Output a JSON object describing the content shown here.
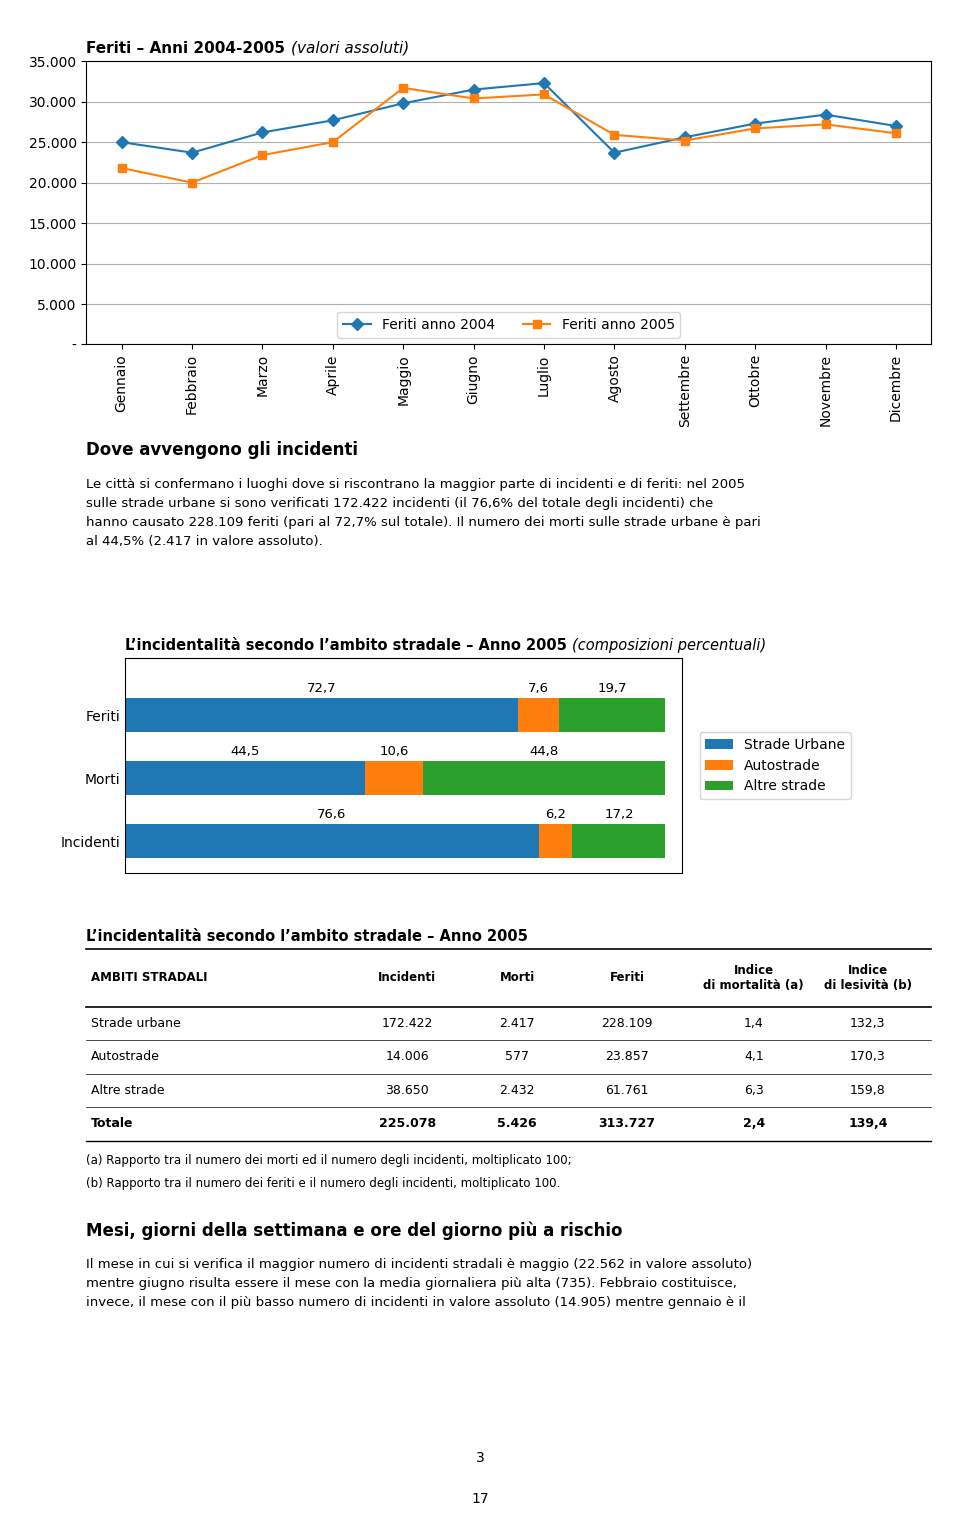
{
  "chart_data": [
    {
      "type": "line",
      "title": "Feriti – Anni 2004-2005",
      "subtitle": "(valori assoluti)",
      "categories": [
        "Gennaio",
        "Febbraio",
        "Marzo",
        "Aprile",
        "Maggio",
        "Giugno",
        "Luglio",
        "Agosto",
        "Settembre",
        "Ottobre",
        "Novembre",
        "Dicembre"
      ],
      "series": [
        {
          "name": "Feriti anno 2004",
          "marker": "diamond",
          "values": [
            25000,
            23700,
            26200,
            27700,
            29800,
            31500,
            32300,
            23700,
            25600,
            27300,
            28400,
            27000
          ]
        },
        {
          "name": "Feriti anno 2005",
          "marker": "square",
          "values": [
            21800,
            20000,
            23400,
            25000,
            31700,
            30400,
            30900,
            25900,
            25200,
            26700,
            27200,
            26100
          ]
        }
      ],
      "ylim": [
        0,
        35000
      ],
      "yticks": [
        {
          "value": 0,
          "label": "-"
        },
        {
          "value": 5000,
          "label": "5.000"
        },
        {
          "value": 10000,
          "label": "10.000"
        },
        {
          "value": 15000,
          "label": "15.000"
        },
        {
          "value": 20000,
          "label": "20.000"
        },
        {
          "value": 25000,
          "label": "25.000"
        },
        {
          "value": 30000,
          "label": "30.000"
        },
        {
          "value": 35000,
          "label": "35.000"
        }
      ],
      "grid": true,
      "legend": "lower center",
      "annotations": [
        "Dove avvengono gli incidenti",
        "Le città si confermano i luoghi dove si riscontrano la maggior parte di incidenti e di feriti: nel 2005\nsulle strade urbane si sono verificati 172.422 incidenti (il 76,6% del totale degli incidenti) che\nhanno causato 228.109 feriti (pari al 72,7% sul totale). Il numero dei morti sulle strade urbane è pari\nal 44,5% (2.417 in valore assoluto)."
      ]
    },
    {
      "type": "bar",
      "orientation": "horizontal",
      "stacked": true,
      "data_labels": true,
      "tick_labels": "y",
      "title": "L’incidentalità secondo l’ambito stradale – Anno 2005",
      "subtitle": "(composizioni percentuali)",
      "categories": [
        "Incidenti",
        "Morti",
        "Feriti"
      ],
      "series": [
        {
          "name": "Strade Urbane",
          "values": [
            76.6,
            44.5,
            72.7
          ],
          "value_labels": [
            "76,6",
            "44,5",
            "72,7"
          ]
        },
        {
          "name": "Autostrade",
          "values": [
            6.2,
            10.6,
            7.6
          ],
          "value_labels": [
            "6,2",
            "10,6",
            "7,6"
          ]
        },
        {
          "name": "Altre strade",
          "values": [
            17.2,
            44.8,
            19.7
          ],
          "value_labels": [
            "17,2",
            "44,8",
            "19,7"
          ]
        }
      ],
      "xlim": [
        0,
        103
      ],
      "legend": "center left"
    },
    {
      "type": "table",
      "title": "L’incidentalità secondo l’ambito stradale – Anno 2005",
      "ylabel": "AMBITI STRADALI",
      "categories": [
        "Strade urbane",
        "Autostrade",
        "Altre strade",
        "Totale"
      ],
      "series": [
        {
          "name": "Incidenti",
          "values": [
            172422,
            14006,
            38650,
            225078
          ],
          "value_labels": [
            "172.422",
            "14.006",
            "38.650",
            "225.078"
          ]
        },
        {
          "name": "Morti",
          "values": [
            2417,
            577,
            2432,
            5426
          ],
          "value_labels": [
            "2.417",
            "577",
            "2.432",
            "5.426"
          ]
        },
        {
          "name": "Feriti",
          "values": [
            228109,
            23857,
            61761,
            313727
          ],
          "value_labels": [
            "228.109",
            "23.857",
            "61.761",
            "313.727"
          ]
        },
        {
          "name": "Indice\ndi mortalità (a)",
          "values": [
            1.4,
            4.1,
            6.3,
            2.4
          ],
          "value_labels": [
            "1,4",
            "4,1",
            "6,3",
            "2,4"
          ]
        },
        {
          "name": "Indice\ndi lesività (b)",
          "values": [
            132.3,
            170.3,
            159.8,
            139.4
          ],
          "value_labels": [
            "132,3",
            "170,3",
            "159,8",
            "139,4"
          ]
        }
      ],
      "annotations": [
        "(a) Rapporto tra il numero dei morti ed il numero degli incidenti, moltiplicato 100;",
        "(b) Rapporto tra il numero dei feriti e il numero degli incidenti, moltiplicato 100.",
        "Mesi, giorni della settimana e ore del giorno più a rischio",
        "Il mese in cui si verifica il maggior numero di incidenti stradali è maggio (22.562 in valore assoluto)\nmentre giugno risulta essere il mese con la media giornaliera più alta (735). Febbraio costituisce,\ninvece, il mese con il più basso numero di incidenti in valore assoluto (14.905) mentre gennaio è il",
        "3",
        "17"
      ]
    }
  ]
}
